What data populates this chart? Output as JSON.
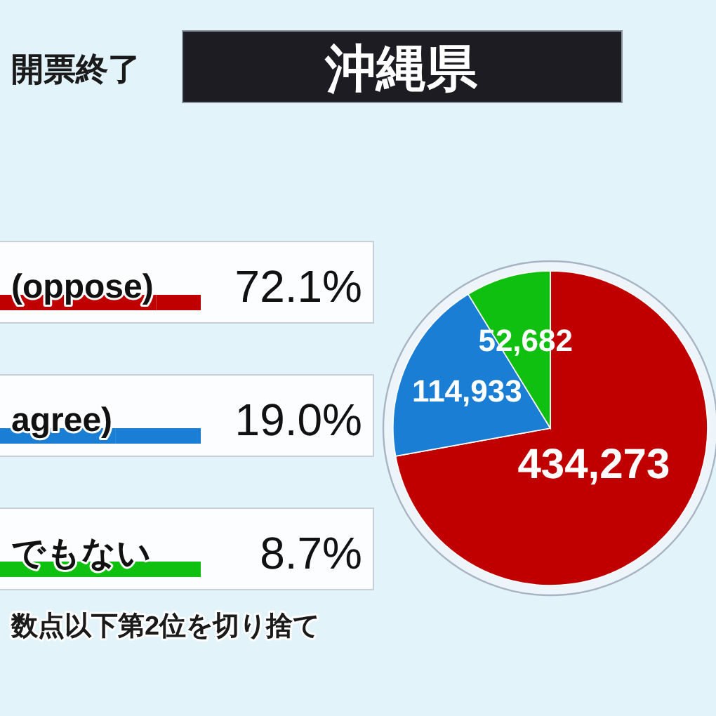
{
  "chart_data": {
    "type": "pie",
    "title": "沖縄県",
    "subtitle": "開票終了",
    "categories": [
      "(oppose)",
      "agree)",
      "でもない"
    ],
    "values": [
      434273,
      114933,
      52682
    ],
    "value_labels": [
      "434,273",
      "114,933",
      "52,682"
    ],
    "colors": [
      "#c00000",
      "#1a7fd4",
      "#10c010"
    ],
    "legend": "left",
    "annotations": [
      "72.1%",
      "19.0%",
      "8.7%",
      "数点以下第2位を切り捨て"
    ]
  }
}
